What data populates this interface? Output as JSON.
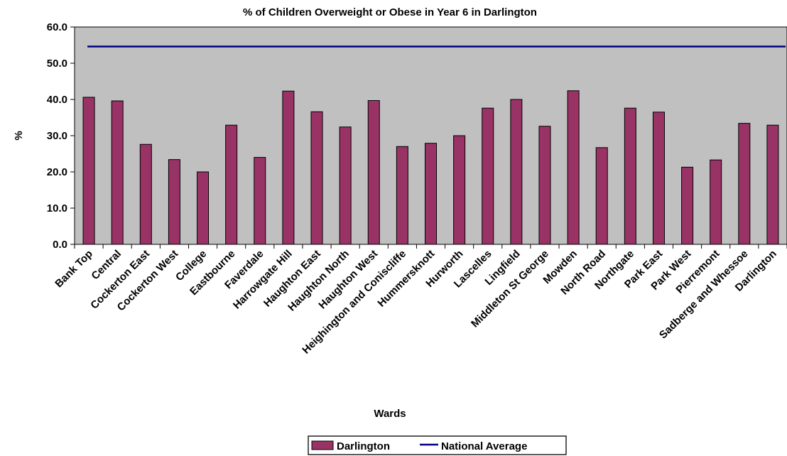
{
  "chart_data": {
    "type": "bar",
    "title": "% of Children Overweight or Obese in Year 6 in Darlington",
    "xlabel": "Wards",
    "ylabel": "%",
    "ylim": [
      0,
      60
    ],
    "yticks": [
      "0.0",
      "10.0",
      "20.0",
      "30.0",
      "40.0",
      "50.0",
      "60.0"
    ],
    "grid": false,
    "legend_position": "bottom",
    "plot_background": "#c0c0c0",
    "categories": [
      "Bank Top",
      "Central",
      "Cockerton East",
      "Cockerton West",
      "College",
      "Eastbourne",
      "Faverdale",
      "Harrowgate Hill",
      "Haughton East",
      "Haughton North",
      "Haughton West",
      "Heighington and Coniscliffe",
      "Hummersknott",
      "Hurworth",
      "Lascelles",
      "Lingfield",
      "Middleton St George",
      "Mowden",
      "North Road",
      "Northgate",
      "Park East",
      "Park West",
      "Pierremont",
      "Sadberge and Whessoe",
      "Darlington"
    ],
    "series": [
      {
        "name": "Darlington",
        "kind": "bar",
        "color": "#993366",
        "values": [
          40.6,
          39.6,
          27.6,
          23.4,
          20.0,
          32.9,
          24.0,
          42.3,
          36.6,
          32.4,
          39.7,
          27.0,
          27.9,
          30.0,
          37.6,
          40.0,
          32.6,
          42.4,
          26.7,
          37.6,
          36.5,
          21.3,
          23.3,
          33.4,
          32.9
        ]
      },
      {
        "name": "National Average",
        "kind": "line",
        "color": "#000080",
        "values": [
          54.6,
          54.6,
          54.6,
          54.6,
          54.6,
          54.6,
          54.6,
          54.6,
          54.6,
          54.6,
          54.6,
          54.6,
          54.6,
          54.6,
          54.6,
          54.6,
          54.6,
          54.6,
          54.6,
          54.6,
          54.6,
          54.6,
          54.6,
          54.6,
          54.6
        ]
      }
    ]
  }
}
